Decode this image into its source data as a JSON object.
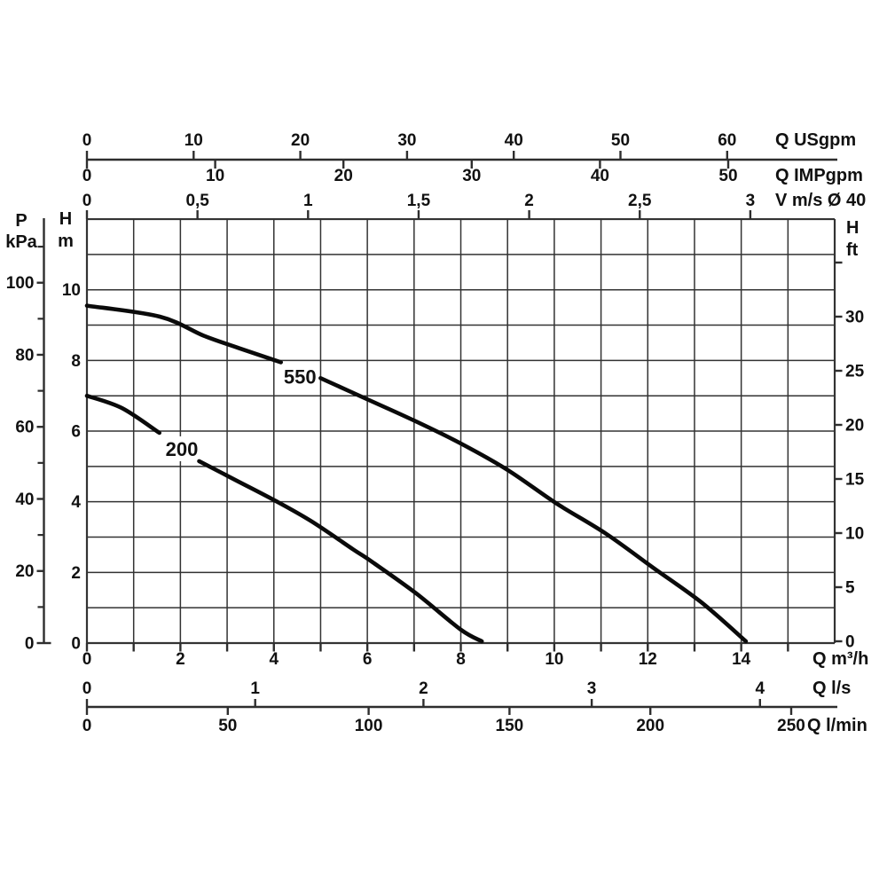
{
  "chart_data": {
    "type": "line",
    "grid": true,
    "xlim_m3h": [
      0,
      16
    ],
    "ylim_m": [
      0,
      12
    ],
    "colors": {
      "curve": "#0a0a0a",
      "grid": "#333333",
      "axis": "#2e2e2e",
      "text": "#111111",
      "background": "#ffffff"
    },
    "x_axes": [
      {
        "id": "usgpm",
        "unit_label": "Q USgpm",
        "ticks": [
          "0",
          "10",
          "20",
          "30",
          "40",
          "50",
          "60"
        ]
      },
      {
        "id": "impgpm",
        "unit_label": "Q IMPgpm",
        "ticks": [
          "0",
          "10",
          "20",
          "30",
          "40",
          "50"
        ]
      },
      {
        "id": "v_ms",
        "unit_label": "V m/s Ø 40",
        "ticks": [
          "0",
          "0,5",
          "1",
          "1,5",
          "2",
          "2,5",
          "3"
        ]
      },
      {
        "id": "m3h",
        "unit_label": "Q m³/h",
        "ticks": [
          "0",
          "2",
          "4",
          "6",
          "8",
          "10",
          "12",
          "14"
        ],
        "minor_ticks": [
          1,
          3,
          5,
          7,
          9,
          11,
          13,
          15
        ]
      },
      {
        "id": "ls",
        "unit_label": "Q l/s",
        "ticks": [
          "0",
          "1",
          "2",
          "3",
          "4"
        ]
      },
      {
        "id": "lmin",
        "unit_label": "Q l/min",
        "ticks": [
          "0",
          "50",
          "100",
          "150",
          "200",
          "250"
        ]
      }
    ],
    "y_axes": [
      {
        "id": "kpa",
        "unit_label_lines": [
          "P",
          "kPa"
        ],
        "ticks": [
          "100",
          "80",
          "60",
          "40",
          "20",
          "0"
        ],
        "minor_ticks": [
          110,
          90,
          70,
          50,
          30,
          10
        ]
      },
      {
        "id": "m",
        "unit_label_lines": [
          "H",
          "m"
        ],
        "ticks": [
          "10",
          "8",
          "6",
          "4",
          "2",
          "0"
        ]
      },
      {
        "id": "ft",
        "unit_label_lines": [
          "H",
          "ft"
        ],
        "ticks": [
          "30",
          "25",
          "20",
          "15",
          "10",
          "5",
          "0"
        ],
        "minor_ticks": [
          35
        ]
      }
    ],
    "series": [
      {
        "name": "550",
        "label": "550",
        "label_at": {
          "q_m3h": 4.56,
          "h_m": 7.55
        },
        "segments": [
          [
            [
              0,
              9.55
            ],
            [
              1.56,
              9.24
            ],
            [
              2.5,
              8.7
            ],
            [
              3.25,
              8.35
            ],
            [
              4.15,
              7.95
            ]
          ],
          [
            [
              5.0,
              7.5
            ],
            [
              6.0,
              6.9
            ],
            [
              7.0,
              6.3
            ],
            [
              8.0,
              5.65
            ],
            [
              9.0,
              4.9
            ],
            [
              10.05,
              3.95
            ],
            [
              11.1,
              3.1
            ],
            [
              12.15,
              2.1
            ],
            [
              13.15,
              1.15
            ],
            [
              14.1,
              0.05
            ]
          ]
        ]
      },
      {
        "name": "200",
        "label": "200",
        "label_at": {
          "q_m3h": 2.03,
          "h_m": 5.5
        },
        "segments": [
          [
            [
              0,
              7.0
            ],
            [
              0.75,
              6.65
            ],
            [
              1.55,
              5.95
            ]
          ],
          [
            [
              2.4,
              5.15
            ],
            [
              3.2,
              4.6
            ],
            [
              4.0,
              4.05
            ],
            [
              4.8,
              3.45
            ],
            [
              5.7,
              2.65
            ],
            [
              6.1,
              2.3
            ],
            [
              7.05,
              1.4
            ],
            [
              8.0,
              0.38
            ],
            [
              8.45,
              0.05
            ]
          ]
        ]
      }
    ]
  }
}
